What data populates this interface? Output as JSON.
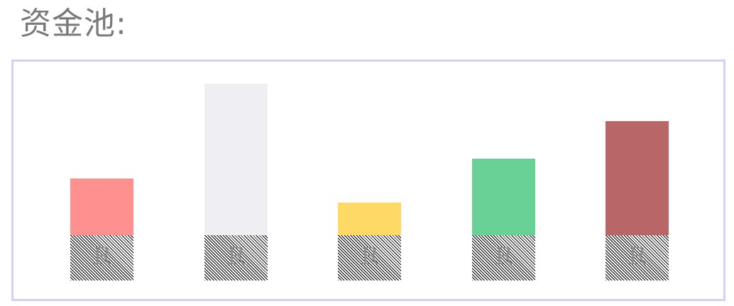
{
  "pool": {
    "title": "资金池:",
    "accent_border": "#d2d0f3",
    "columns": [
      {
        "color": "#ff9090",
        "level": 80,
        "reserve_label": "R"
      },
      {
        "color": "#efeff3",
        "level": 214,
        "reserve_label": "R"
      },
      {
        "color": "#ffd966",
        "level": 46,
        "reserve_label": "R"
      },
      {
        "color": "#69d196",
        "level": 108,
        "reserve_label": "R"
      },
      {
        "color": "#b86666",
        "level": 161,
        "reserve_label": "R"
      }
    ]
  }
}
